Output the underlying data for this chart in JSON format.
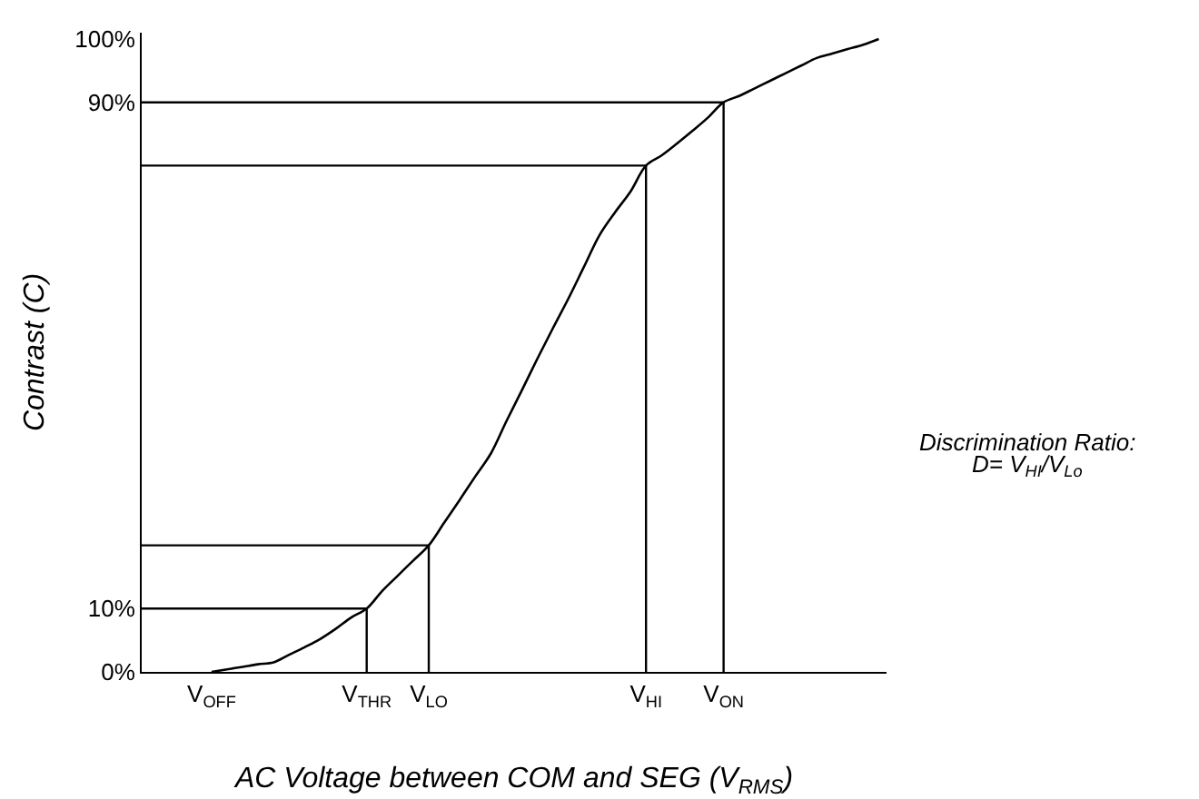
{
  "chart_data": {
    "type": "line",
    "xlabel": "AC Voltage between COM and SEG (V$_{RMS}$)",
    "ylabel": "Contrast (C)",
    "annotations": [
      "Discrimination Ratio:",
      "D= V$_{HI}$/V$_{Lo}$"
    ],
    "categories": [
      null,
      null,
      null,
      null,
      "V$_{OFF}$",
      null,
      null,
      null,
      null,
      null,
      null,
      null,
      null,
      null,
      "V$_{THR}$",
      null,
      null,
      null,
      "V$_{LO}$",
      null,
      null,
      null,
      null,
      null,
      null,
      null,
      null,
      null,
      null,
      null,
      null,
      null,
      "V$_{HI}$",
      null,
      null,
      null,
      null,
      "V$_{ON}$",
      null,
      null,
      null,
      null,
      null,
      null,
      null,
      null,
      null,
      null
    ],
    "ylim": [
      0,
      101
    ],
    "yticks": [
      {
        "value": 0,
        "label": "0%"
      },
      {
        "value": 10,
        "label": "10%"
      },
      {
        "value": 90,
        "label": "90%"
      },
      {
        "value": 100,
        "label": "100%"
      }
    ],
    "grid": false,
    "marker": "none",
    "line_style": "solid",
    "series": [
      {
        "color": "#000000",
        "values": [
          null,
          null,
          null,
          null,
          0,
          0.4,
          0.8,
          1.2,
          1.5,
          2.7,
          3.9,
          5.2,
          6.8,
          8.6,
          10,
          12.8,
          15.2,
          17.6,
          20,
          23.6,
          27.2,
          30.9,
          34.5,
          39.6,
          44.5,
          49.5,
          54.3,
          59,
          64,
          69,
          72.6,
          75.9,
          80,
          81.6,
          83.5,
          85.5,
          87.6,
          90,
          91,
          92.2,
          93.4,
          94.6,
          95.8,
          97,
          97.7,
          98.4,
          99.1,
          100
        ]
      }
    ],
    "ref_lines": [
      {
        "axis": "y",
        "value": 10,
        "color": "#000000"
      },
      {
        "axis": "y",
        "value": 20,
        "color": "#000000"
      },
      {
        "axis": "y",
        "value": 80,
        "color": "#000000"
      },
      {
        "axis": "y",
        "value": 90,
        "color": "#000000"
      },
      {
        "axis": "x",
        "value": "V$_{THR}$",
        "color": "#000000"
      },
      {
        "axis": "x",
        "value": "V$_{LO}$",
        "color": "#000000"
      },
      {
        "axis": "x",
        "value": "V$_{HI}$",
        "color": "#000000"
      },
      {
        "axis": "x",
        "value": "V$_{ON}$",
        "color": "#000000"
      }
    ]
  }
}
